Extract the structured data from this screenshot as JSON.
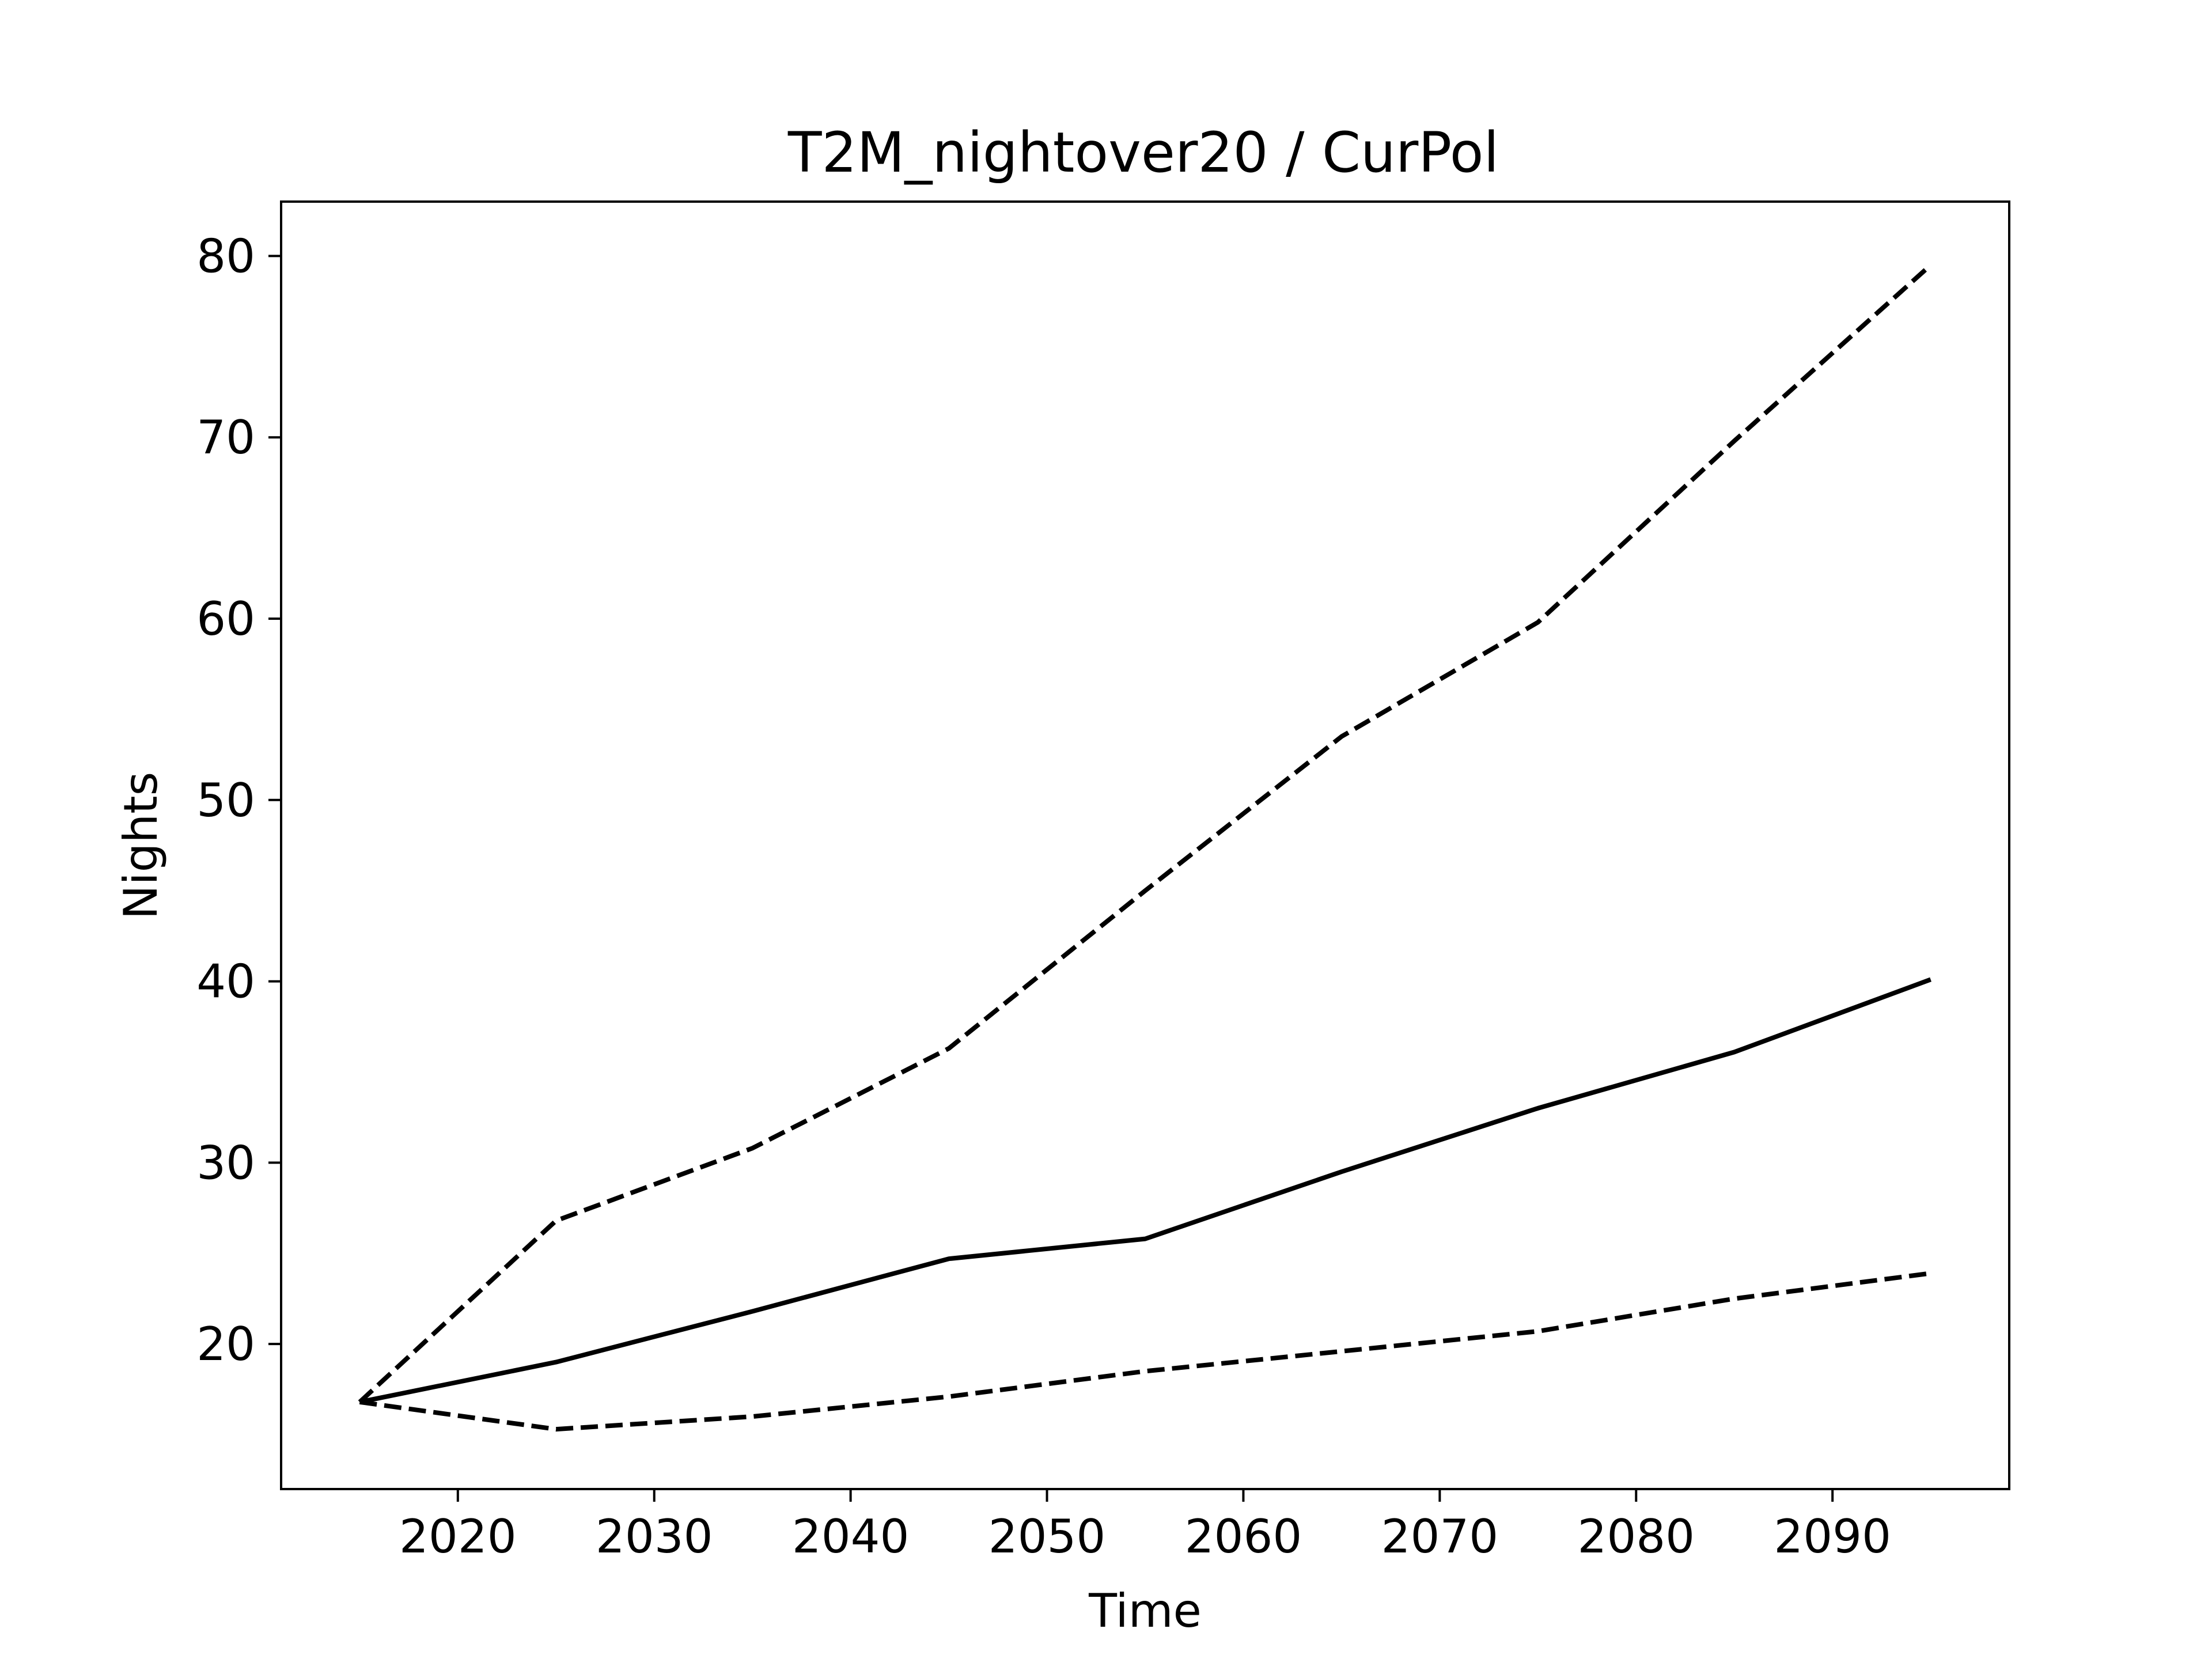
{
  "chart_data": {
    "type": "line",
    "title": "T2M_nightover20 / CurPol",
    "xlabel": "Time",
    "ylabel": "Nights",
    "xlim": [
      2011,
      2099
    ],
    "ylim": [
      12,
      83
    ],
    "xticks": [
      2020,
      2030,
      2040,
      2050,
      2060,
      2070,
      2080,
      2090
    ],
    "yticks": [
      20,
      30,
      40,
      50,
      60,
      70,
      80
    ],
    "grid": false,
    "legend": "none",
    "x": [
      2015,
      2025,
      2035,
      2045,
      2055,
      2065,
      2075,
      2085,
      2095
    ],
    "series": [
      {
        "style": "dashed",
        "color": "#000000",
        "values": [
          16.8,
          26.8,
          30.8,
          36.3,
          45.0,
          53.5,
          59.8,
          69.8,
          79.5
        ]
      },
      {
        "style": "solid",
        "color": "#000000",
        "values": [
          16.8,
          19.0,
          21.8,
          24.7,
          25.8,
          29.5,
          33.0,
          36.1,
          40.1
        ]
      },
      {
        "style": "dashed",
        "color": "#000000",
        "values": [
          16.8,
          15.3,
          16.0,
          17.1,
          18.5,
          19.6,
          20.7,
          22.5,
          23.9
        ]
      }
    ]
  }
}
